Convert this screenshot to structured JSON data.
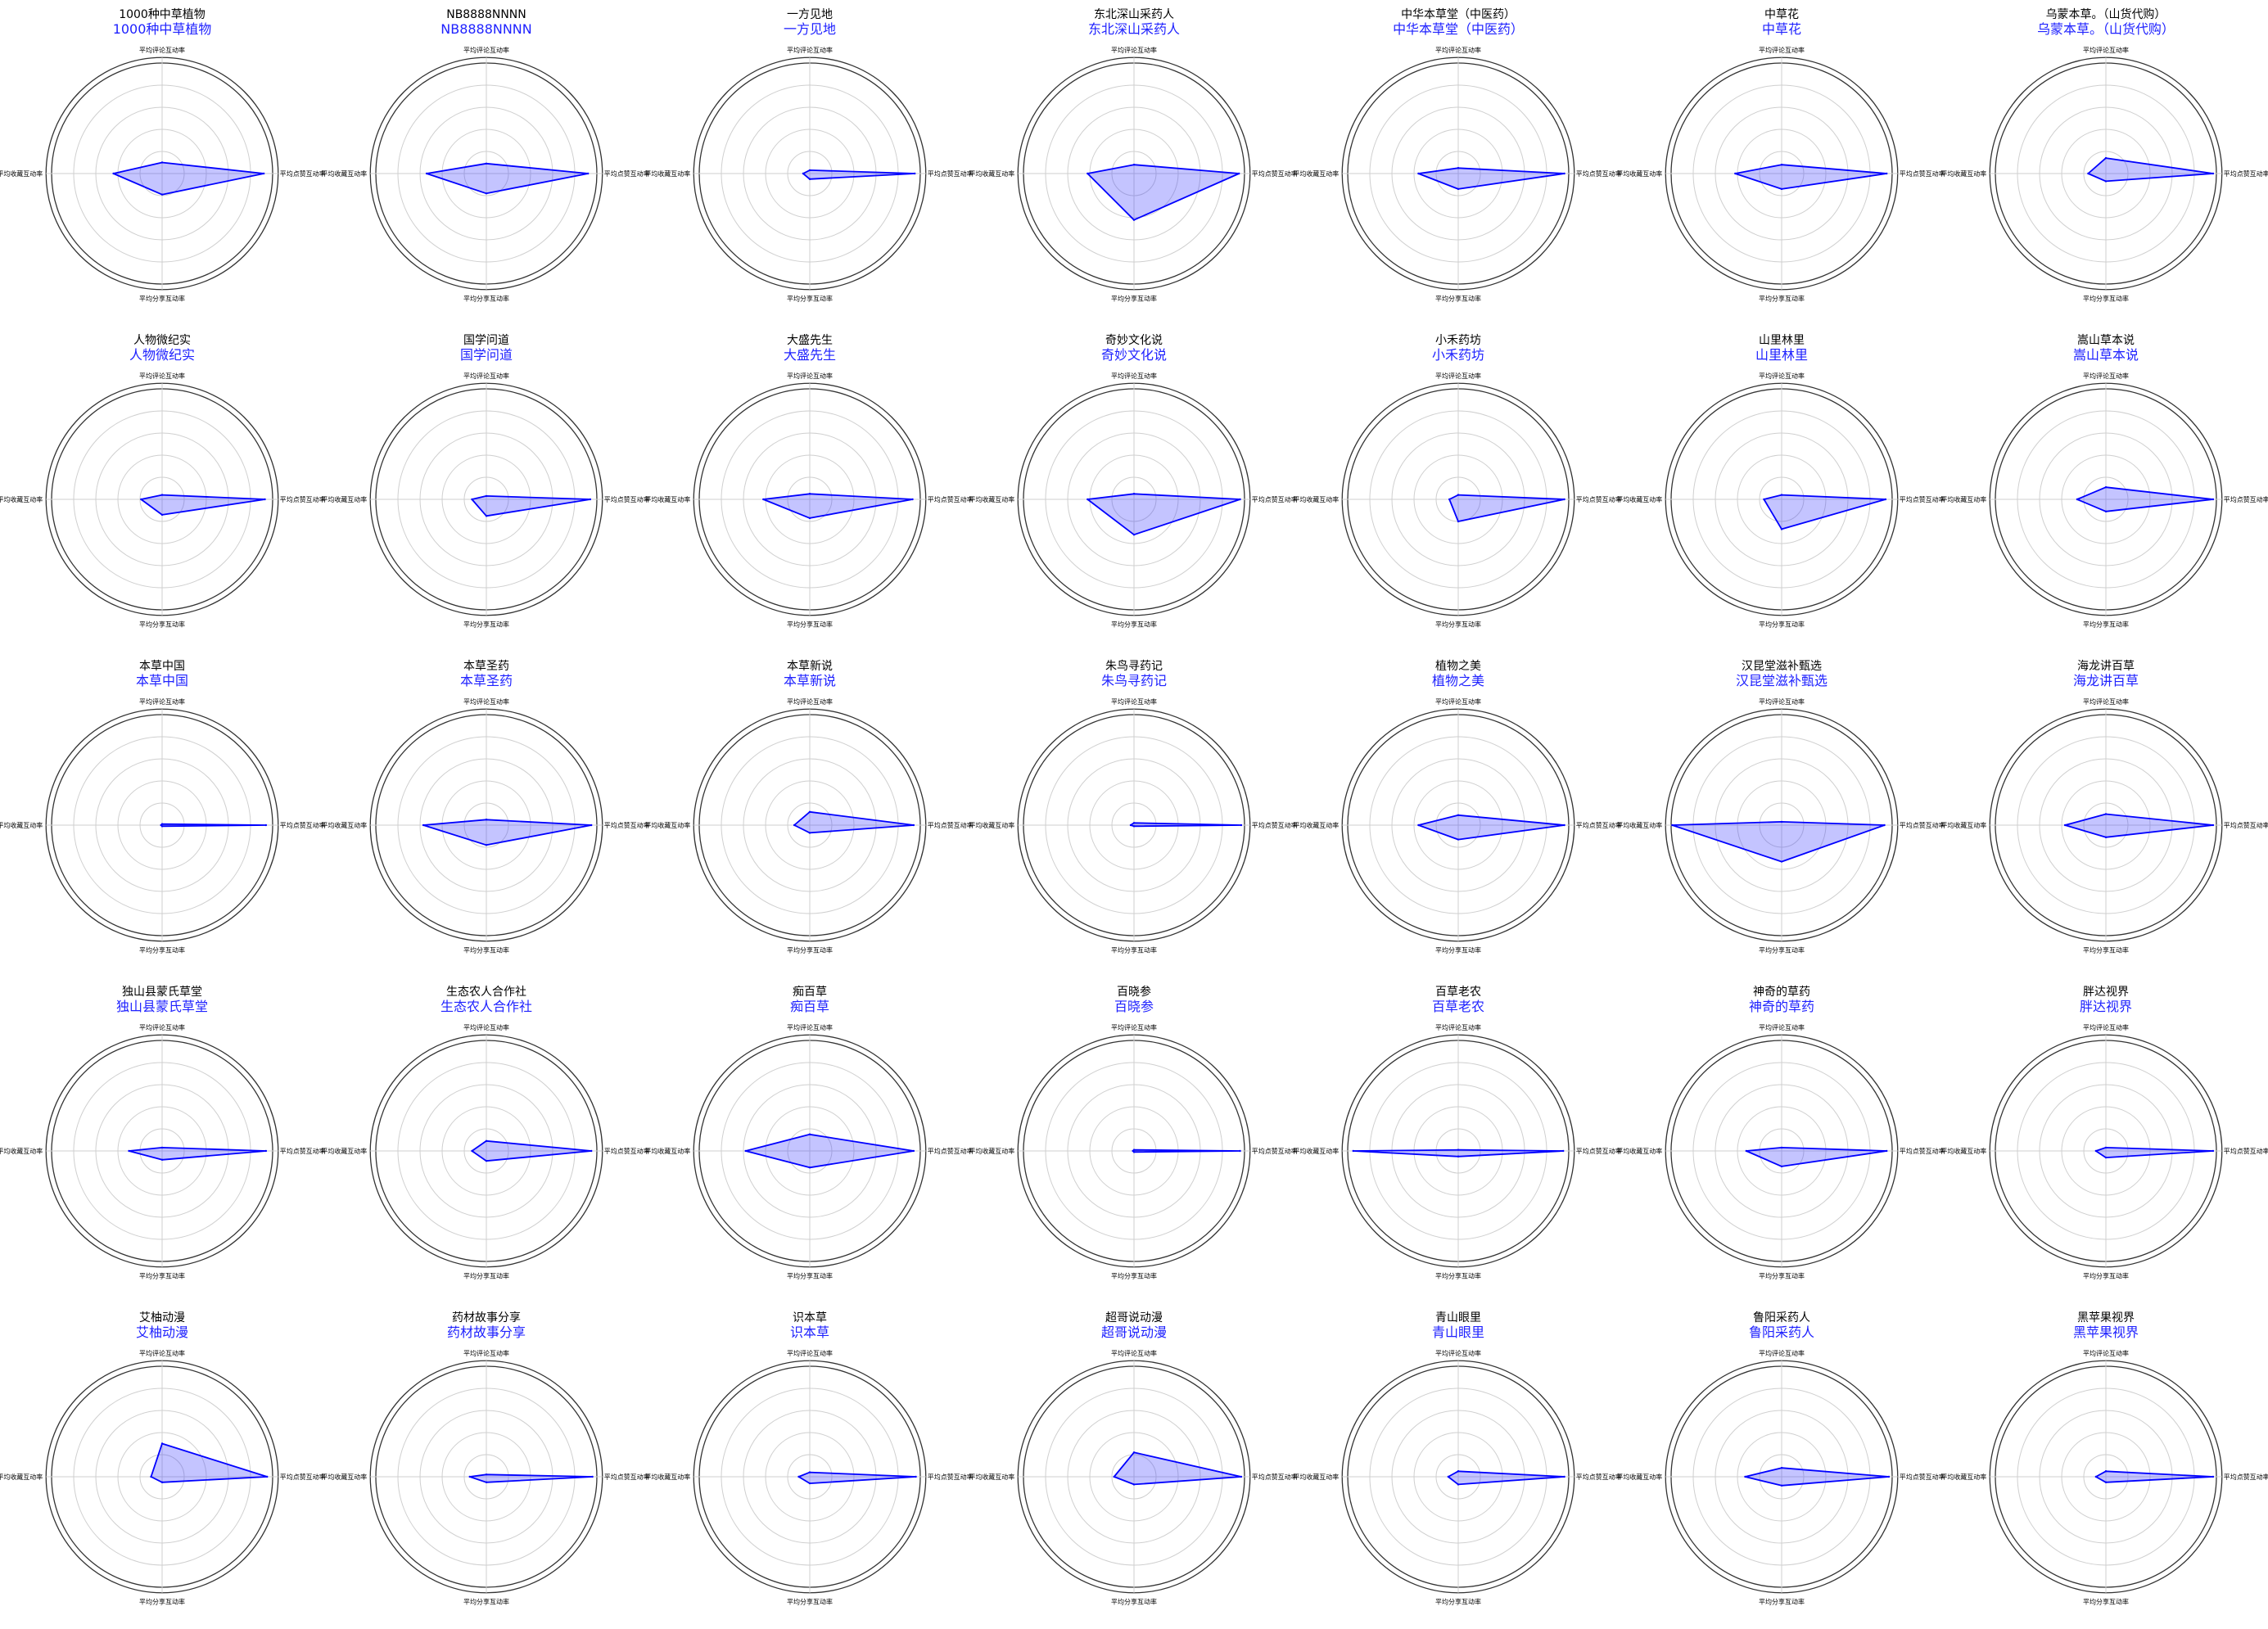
{
  "chart_data": {
    "type": "radar",
    "axes": [
      "平均点赞互动率",
      "平均评论互动率",
      "平均收藏互动率",
      "平均分享互动率"
    ],
    "r_max": 1.0,
    "grid": true,
    "colors": {
      "fill": "#3c3cff",
      "line": "#0000ff",
      "subtitle": "#1f22ff"
    },
    "charts": [
      {
        "title": "1000种中草植物",
        "subtitle": "1000种中草植物",
        "values": [
          0.92,
          0.1,
          0.44,
          0.19
        ]
      },
      {
        "title": "NB8888NNNN",
        "subtitle": "NB8888NNNN",
        "values": [
          0.92,
          0.09,
          0.54,
          0.18
        ]
      },
      {
        "title": "一方见地",
        "subtitle": "一方见地",
        "values": [
          0.95,
          0.03,
          0.06,
          0.05
        ]
      },
      {
        "title": "东北深山采药人",
        "subtitle": "东北深山采药人",
        "values": [
          0.95,
          0.08,
          0.42,
          0.42
        ]
      },
      {
        "title": "中华本草堂（中医药）",
        "subtitle": "中华本草堂（中医药）",
        "values": [
          0.96,
          0.05,
          0.36,
          0.14
        ]
      },
      {
        "title": "中草花",
        "subtitle": "中草花",
        "values": [
          0.95,
          0.08,
          0.42,
          0.14
        ]
      },
      {
        "title": "乌蒙本草。（山货代购）",
        "subtitle": "乌蒙本草。（山货代购）",
        "values": [
          0.97,
          0.14,
          0.16,
          0.07
        ]
      },
      {
        "title": "人物微纪实",
        "subtitle": "人物微纪实",
        "values": [
          0.93,
          0.04,
          0.19,
          0.14
        ]
      },
      {
        "title": "国学问道",
        "subtitle": "国学问道",
        "values": [
          0.94,
          0.03,
          0.13,
          0.15
        ]
      },
      {
        "title": "大盛先生",
        "subtitle": "大盛先生",
        "values": [
          0.93,
          0.05,
          0.42,
          0.17
        ]
      },
      {
        "title": "奇妙文化说",
        "subtitle": "奇妙文化说",
        "values": [
          0.96,
          0.05,
          0.42,
          0.32
        ]
      },
      {
        "title": "小禾药坊",
        "subtitle": "小禾药坊",
        "values": [
          0.96,
          0.04,
          0.08,
          0.2
        ]
      },
      {
        "title": "山里林里",
        "subtitle": "山里林里",
        "values": [
          0.94,
          0.04,
          0.16,
          0.27
        ]
      },
      {
        "title": "嵩山草本说",
        "subtitle": "嵩山草本说",
        "values": [
          0.97,
          0.11,
          0.26,
          0.11
        ]
      },
      {
        "title": "本草中国",
        "subtitle": "本草中国",
        "values": [
          0.94,
          0.01,
          0.01,
          0.01
        ]
      },
      {
        "title": "本草圣药",
        "subtitle": "本草圣药",
        "values": [
          0.95,
          0.05,
          0.57,
          0.18
        ]
      },
      {
        "title": "本草新说",
        "subtitle": "本草新说",
        "values": [
          0.94,
          0.12,
          0.14,
          0.07
        ]
      },
      {
        "title": "朱鸟寻药记",
        "subtitle": "朱鸟寻药记",
        "values": [
          0.97,
          0.02,
          0.03,
          0.01
        ]
      },
      {
        "title": "植物之美",
        "subtitle": "植物之美",
        "values": [
          0.96,
          0.09,
          0.36,
          0.13
        ]
      },
      {
        "title": "汉昆堂滋补甄选",
        "subtitle": "汉昆堂滋补甄选",
        "values": [
          0.93,
          0.03,
          0.99,
          0.33
        ]
      },
      {
        "title": "海龙讲百草",
        "subtitle": "海龙讲百草",
        "values": [
          0.97,
          0.1,
          0.37,
          0.11
        ]
      },
      {
        "title": "独山县蒙氏草堂",
        "subtitle": "独山县蒙氏草堂",
        "values": [
          0.94,
          0.03,
          0.3,
          0.08
        ]
      },
      {
        "title": "生态农人合作社",
        "subtitle": "生态农人合作社",
        "values": [
          0.95,
          0.09,
          0.13,
          0.09
        ]
      },
      {
        "title": "痴百草",
        "subtitle": "痴百草",
        "values": [
          0.94,
          0.15,
          0.58,
          0.15
        ]
      },
      {
        "title": "百晓参",
        "subtitle": "百晓参",
        "values": [
          0.96,
          0.01,
          0.01,
          0.01
        ]
      },
      {
        "title": "百草老农",
        "subtitle": "百草老农",
        "values": [
          0.95,
          0.01,
          0.95,
          0.05
        ]
      },
      {
        "title": "神奇的草药",
        "subtitle": "神奇的草药",
        "values": [
          0.95,
          0.03,
          0.32,
          0.14
        ]
      },
      {
        "title": "胖达视界",
        "subtitle": "胖达视界",
        "values": [
          0.97,
          0.03,
          0.09,
          0.06
        ]
      },
      {
        "title": "艾柚动漫",
        "subtitle": "艾柚动漫",
        "values": [
          0.95,
          0.3,
          0.1,
          0.05
        ]
      },
      {
        "title": "药材故事分享",
        "subtitle": "药材故事分享",
        "values": [
          0.96,
          0.02,
          0.15,
          0.05
        ]
      },
      {
        "title": "识本草",
        "subtitle": "识本草",
        "values": [
          0.96,
          0.04,
          0.1,
          0.06
        ]
      },
      {
        "title": "超哥说动漫",
        "subtitle": "超哥说动漫",
        "values": [
          0.97,
          0.22,
          0.18,
          0.07
        ]
      },
      {
        "title": "青山眼里",
        "subtitle": "青山眼里",
        "values": [
          0.96,
          0.05,
          0.09,
          0.07
        ]
      },
      {
        "title": "鲁阳采药人",
        "subtitle": "鲁阳采药人",
        "values": [
          0.97,
          0.08,
          0.33,
          0.08
        ]
      },
      {
        "title": "黑苹果视界",
        "subtitle": "黑苹果视界",
        "values": [
          0.97,
          0.05,
          0.09,
          0.05
        ]
      }
    ]
  }
}
